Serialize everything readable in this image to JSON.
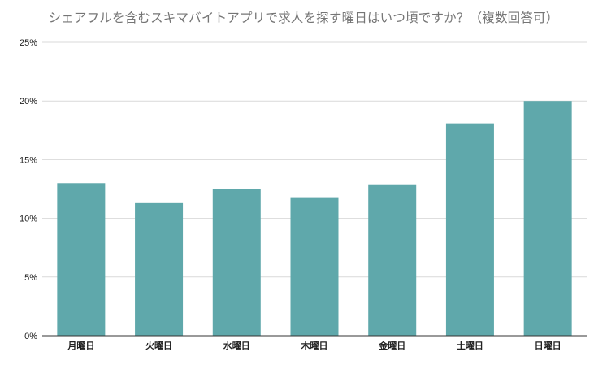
{
  "chart_data": {
    "type": "bar",
    "title": "シェアフルを含むスキマバイトアプリで求人を探す曜日はいつ頃ですか？（複数回答可）",
    "xlabel": "",
    "ylabel": "",
    "categories": [
      "月曜日",
      "火曜日",
      "水曜日",
      "木曜日",
      "金曜日",
      "土曜日",
      "日曜日"
    ],
    "values": [
      13.0,
      11.3,
      12.5,
      11.8,
      12.9,
      18.1,
      20.0
    ],
    "ylim": [
      0,
      25
    ],
    "yticks": [
      0,
      5,
      10,
      15,
      20,
      25
    ],
    "ytick_labels": [
      "0%",
      "5%",
      "10%",
      "15%",
      "20%",
      "25%"
    ],
    "grid": true,
    "legend": "none",
    "colors": {
      "bar": "#5fa8ab",
      "grid": "#d9d9d9",
      "axis": "#333333"
    }
  }
}
